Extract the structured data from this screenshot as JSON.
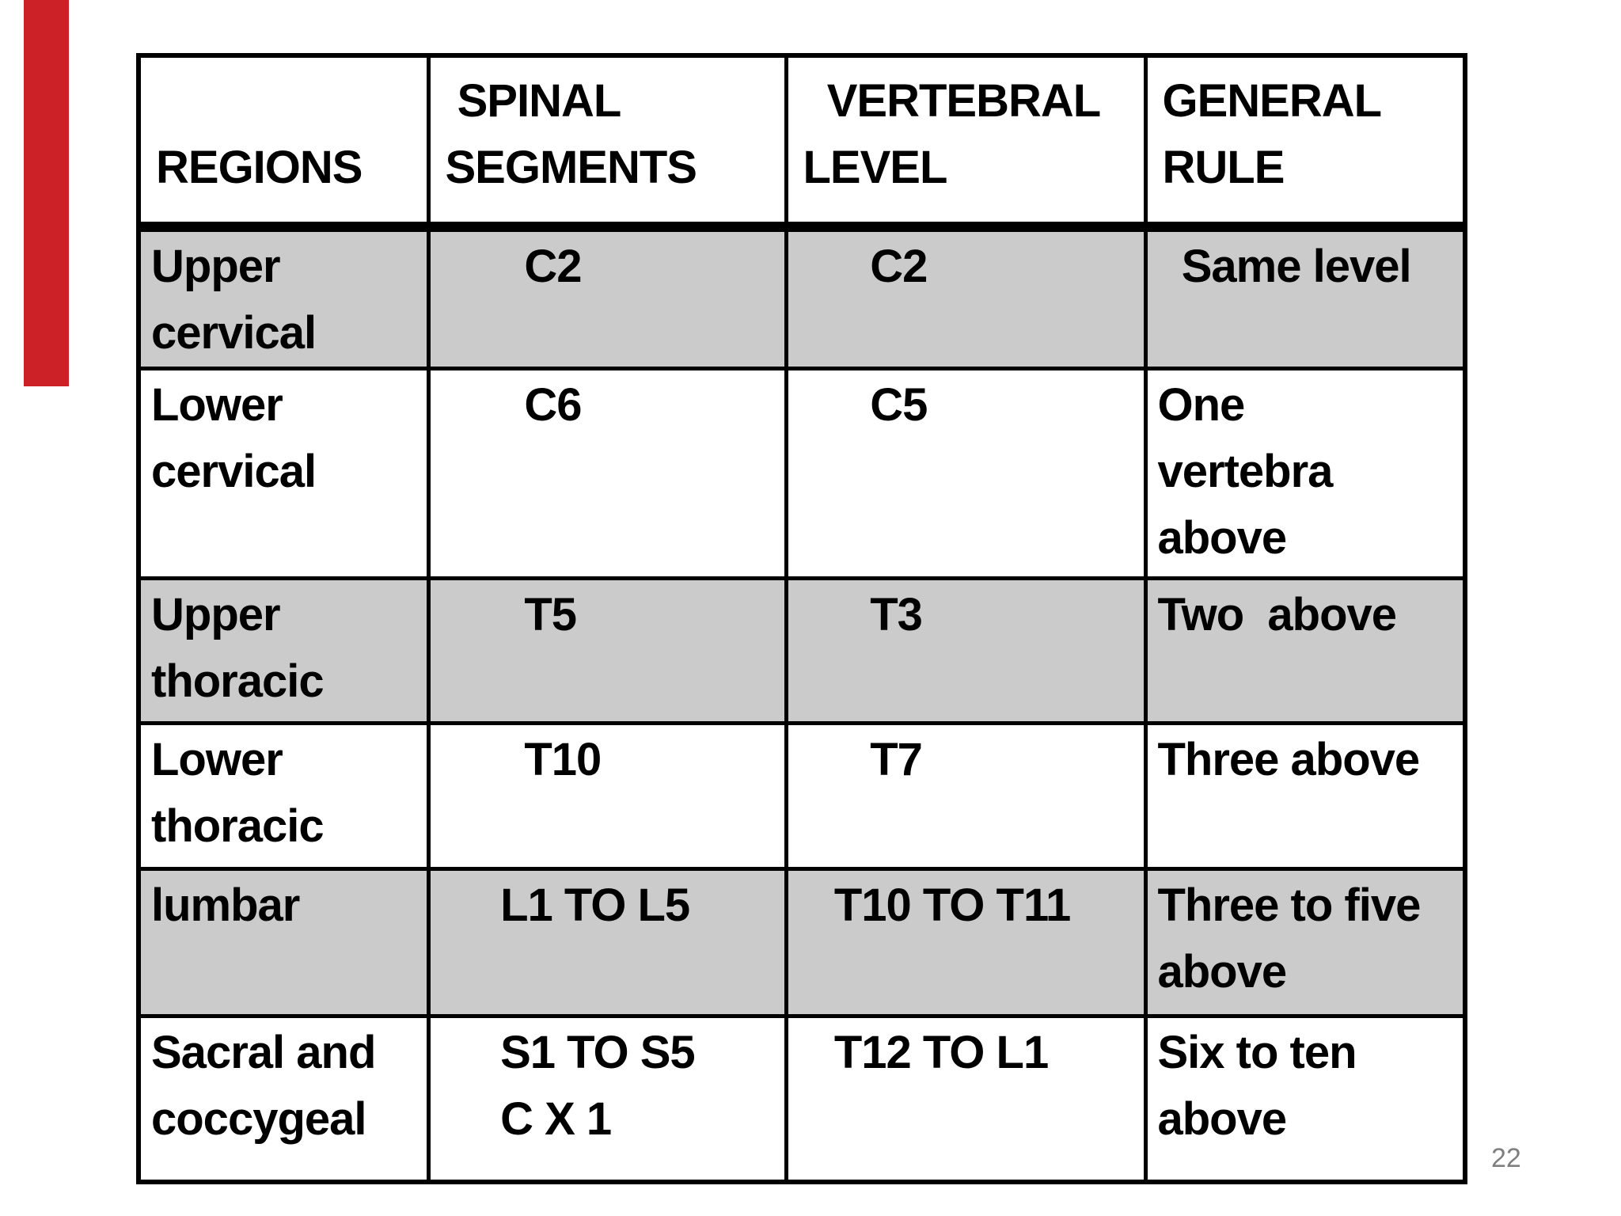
{
  "page_number": "22",
  "colors": {
    "accent_bar": "#cd2128",
    "row_shade": "#cbcbcb",
    "border": "#000000",
    "page_number": "#7f7f7f"
  },
  "table": {
    "header": [
      "REGIONS",
      " SPINAL\nSEGMENTS",
      "  VERTEBRAL\nLEVEL",
      "GENERAL\nRULE"
    ],
    "rows": [
      {
        "name": "upper-cervical",
        "shaded": true,
        "cells": [
          "Upper\ncervical",
          "       C2",
          "      C2",
          "  Same level"
        ]
      },
      {
        "name": "lower-cervical",
        "shaded": false,
        "cells": [
          "Lower\ncervical",
          "       C6",
          "      C5",
          "One\nvertebra\nabove"
        ]
      },
      {
        "name": "upper-thoracic",
        "shaded": true,
        "cells": [
          "Upper\nthoracic",
          "       T5",
          "      T3",
          "Two  above"
        ]
      },
      {
        "name": "lower-thoracic",
        "shaded": false,
        "cells": [
          "Lower\nthoracic",
          "       T10",
          "      T7",
          "Three above"
        ]
      },
      {
        "name": "lumbar",
        "shaded": true,
        "cells": [
          "lumbar",
          "     L1 TO L5",
          "   T10 TO T11",
          "Three to five\nabove"
        ]
      },
      {
        "name": "sacral-coccygeal",
        "shaded": false,
        "cells": [
          "Sacral and\ncoccygeal",
          "     S1 TO S5\n     C X 1",
          "   T12 TO L1",
          "Six to ten\nabove"
        ]
      }
    ]
  }
}
